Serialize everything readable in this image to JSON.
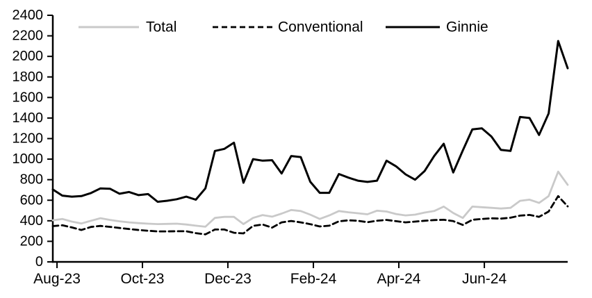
{
  "figure": {
    "background": "#ffffff",
    "axis_color": "#000000"
  },
  "legend": {
    "position": "top",
    "items": [
      {
        "label": "Total",
        "color": "#c9c9c9",
        "dash": null,
        "width": 3
      },
      {
        "label": "Conventional",
        "color": "#000000",
        "dash": "8 5",
        "width": 2.8
      },
      {
        "label": "Ginnie",
        "color": "#000000",
        "dash": null,
        "width": 3
      }
    ]
  },
  "chart_data": {
    "type": "line",
    "title": "",
    "xlabel": "",
    "ylabel": "",
    "grid": false,
    "x_unit": "weekly observations, Aug-23 through Aug-24",
    "y_axis": {
      "min": 0,
      "max": 2400,
      "step": 200,
      "tick_labels": [
        "0",
        "200",
        "400",
        "600",
        "800",
        "1000",
        "1200",
        "1400",
        "1600",
        "1800",
        "2000",
        "2200",
        "2400"
      ]
    },
    "x_axis": {
      "tick_labels": [
        "Aug-23",
        "Oct-23",
        "Dec-23",
        "Feb-24",
        "Apr-24",
        "Jun-24"
      ],
      "tick_weeks": [
        0.44,
        9.4,
        18.36,
        27.33,
        36.29,
        45.26
      ]
    },
    "series": [
      {
        "name": "Total",
        "color": "#c9c9c9",
        "dash": null,
        "width": 2.8,
        "values": [
          405,
          418,
          392,
          374,
          400,
          425,
          408,
          395,
          385,
          377,
          372,
          368,
          370,
          372,
          364,
          352,
          342,
          428,
          438,
          438,
          368,
          428,
          456,
          440,
          470,
          505,
          495,
          460,
          418,
          452,
          495,
          483,
          473,
          463,
          498,
          490,
          466,
          452,
          460,
          480,
          495,
          538,
          476,
          428,
          538,
          532,
          526,
          519,
          526,
          594,
          606,
          574,
          640,
          878,
          750
        ]
      },
      {
        "name": "Conventional",
        "color": "#000000",
        "dash": "8 5",
        "width": 2.8,
        "values": [
          348,
          356,
          335,
          310,
          340,
          350,
          341,
          330,
          320,
          310,
          303,
          297,
          297,
          298,
          298,
          280,
          268,
          315,
          315,
          283,
          277,
          350,
          364,
          333,
          385,
          398,
          385,
          367,
          345,
          352,
          395,
          404,
          400,
          386,
          400,
          408,
          396,
          385,
          392,
          400,
          407,
          410,
          397,
          360,
          410,
          418,
          424,
          421,
          430,
          450,
          457,
          438,
          490,
          640,
          540
        ]
      },
      {
        "name": "Ginnie",
        "color": "#000000",
        "dash": null,
        "width": 3,
        "values": [
          705,
          645,
          635,
          640,
          670,
          715,
          712,
          663,
          680,
          650,
          660,
          585,
          595,
          610,
          635,
          605,
          715,
          1080,
          1100,
          1160,
          770,
          1000,
          985,
          990,
          860,
          1030,
          1020,
          780,
          672,
          672,
          855,
          820,
          790,
          778,
          790,
          985,
          930,
          852,
          800,
          885,
          1030,
          1150,
          870,
          1085,
          1290,
          1300,
          1220,
          1090,
          1080,
          1410,
          1400,
          1235,
          1445,
          2150,
          1885
        ]
      }
    ],
    "legend_position": "top"
  }
}
